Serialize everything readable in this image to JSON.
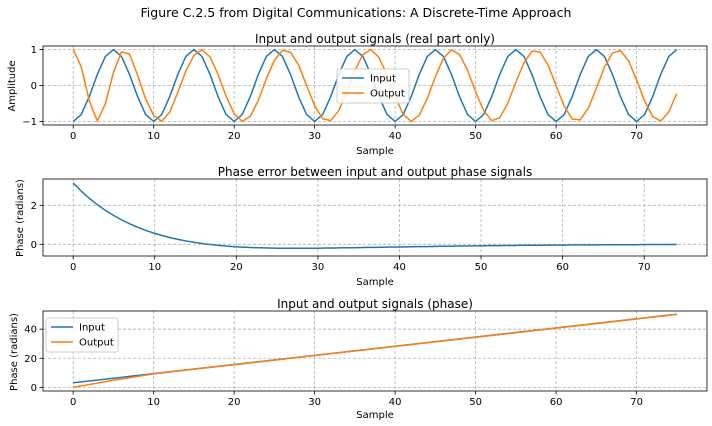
{
  "figure": {
    "suptitle": "Figure C.2.5 from Digital Communications: A Discrete-Time Approach"
  },
  "colors": {
    "input": "#1f77b4",
    "output": "#ff7f0e",
    "grid": "#b0b0b0",
    "axis": "#000000"
  },
  "chart_data": [
    {
      "type": "line",
      "title": "Input and output signals (real part only)",
      "xlabel": "Sample",
      "ylabel": "Amplitude",
      "xlim": [
        -3.75,
        78.75
      ],
      "ylim": [
        -1.1,
        1.1
      ],
      "xticks": [
        0,
        10,
        20,
        30,
        40,
        50,
        60,
        70
      ],
      "yticks": [
        -1,
        0,
        1
      ],
      "grid": true,
      "legend": "center",
      "series": [
        {
          "name": "Input",
          "color": "#1f77b4",
          "x": [
            0,
            1,
            2,
            3,
            4,
            5,
            6,
            7,
            8,
            9,
            10,
            11,
            12,
            13,
            14,
            15,
            16,
            17,
            18,
            19,
            20,
            21,
            22,
            23,
            24,
            25,
            26,
            27,
            28,
            29,
            30,
            31,
            32,
            33,
            34,
            35,
            36,
            37,
            38,
            39,
            40,
            41,
            42,
            43,
            44,
            45,
            46,
            47,
            48,
            49,
            50,
            51,
            52,
            53,
            54,
            55,
            56,
            57,
            58,
            59,
            60,
            61,
            62,
            63,
            64,
            65,
            66,
            67,
            68,
            69,
            70,
            71,
            72,
            73,
            74,
            75
          ],
          "y": [
            -1.0,
            -0.809,
            -0.309,
            0.309,
            0.809,
            1.0,
            0.809,
            0.309,
            -0.309,
            -0.809,
            -1.0,
            -0.809,
            -0.309,
            0.309,
            0.809,
            1.0,
            0.809,
            0.309,
            -0.309,
            -0.809,
            -1.0,
            -0.809,
            -0.309,
            0.309,
            0.809,
            1.0,
            0.809,
            0.309,
            -0.309,
            -0.809,
            -1.0,
            -0.809,
            -0.309,
            0.309,
            0.809,
            1.0,
            0.809,
            0.309,
            -0.309,
            -0.809,
            -1.0,
            -0.809,
            -0.309,
            0.309,
            0.809,
            1.0,
            0.809,
            0.309,
            -0.309,
            -0.809,
            -1.0,
            -0.809,
            -0.309,
            0.309,
            0.809,
            1.0,
            0.809,
            0.309,
            -0.309,
            -0.809,
            -1.0,
            -0.809,
            -0.309,
            0.309,
            0.809,
            1.0,
            0.809,
            0.309,
            -0.309,
            -0.809,
            -1.0,
            -0.809,
            -0.309,
            0.309,
            0.809,
            1.0
          ]
        },
        {
          "name": "Output",
          "color": "#ff7f0e",
          "x": [
            0,
            1,
            2,
            3,
            4,
            5,
            6,
            7,
            8,
            9,
            10,
            11,
            12,
            13,
            14,
            15,
            16,
            17,
            18,
            19,
            20,
            21,
            22,
            23,
            24,
            25,
            26,
            27,
            28,
            29,
            30,
            31,
            32,
            33,
            34,
            35,
            36,
            37,
            38,
            39,
            40,
            41,
            42,
            43,
            44,
            45,
            46,
            47,
            48,
            49,
            50,
            51,
            52,
            53,
            54,
            55,
            56,
            57,
            58,
            59,
            60,
            61,
            62,
            63,
            64,
            65,
            66,
            67,
            68,
            69,
            70,
            71,
            72,
            73,
            74,
            75
          ],
          "y": [
            1.0,
            0.524,
            -0.427,
            -0.99,
            -0.505,
            0.36,
            0.935,
            0.878,
            0.289,
            -0.373,
            -0.834,
            -0.996,
            -0.741,
            -0.195,
            0.403,
            0.841,
            0.993,
            0.798,
            0.307,
            -0.297,
            -0.786,
            -0.998,
            -0.858,
            -0.417,
            0.189,
            0.697,
            0.978,
            0.929,
            0.573,
            0.003,
            -0.562,
            -0.925,
            -0.979,
            -0.697,
            -0.165,
            0.417,
            0.865,
            0.999,
            0.782,
            0.297,
            -0.306,
            -0.806,
            -0.999,
            -0.826,
            -0.359,
            0.246,
            0.758,
            0.992,
            0.863,
            0.425,
            -0.175,
            -0.7,
            -0.978,
            -0.9,
            -0.495,
            0.09,
            0.633,
            0.956,
            0.934,
            0.573,
            0.0,
            -0.572,
            -0.932,
            -0.957,
            -0.636,
            -0.079,
            0.505,
            0.903,
            0.974,
            0.688,
            0.154,
            -0.43,
            -0.864,
            -0.987,
            -0.737,
            -0.225
          ]
        }
      ]
    },
    {
      "type": "line",
      "title": "Phase error between input and output phase signals",
      "xlabel": "Sample",
      "ylabel": "Phase (radians)",
      "xlim": [
        -3.7,
        77.7
      ],
      "ylim": [
        -0.6,
        3.35
      ],
      "xticks": [
        0,
        10,
        20,
        30,
        40,
        50,
        60,
        70
      ],
      "yticks": [
        0,
        2
      ],
      "grid": true,
      "series": [
        {
          "color": "#1f77b4",
          "x": [
            0,
            1,
            2,
            3,
            4,
            5,
            6,
            7,
            8,
            9,
            10,
            11,
            12,
            13,
            14,
            15,
            16,
            17,
            18,
            19,
            20,
            21,
            22,
            23,
            24,
            25,
            26,
            27,
            28,
            29,
            30,
            31,
            32,
            33,
            34,
            35,
            36,
            37,
            38,
            39,
            40,
            41,
            42,
            43,
            44,
            45,
            46,
            47,
            48,
            49,
            50,
            51,
            52,
            53,
            54,
            55,
            56,
            57,
            58,
            59,
            60,
            61,
            62,
            63,
            64,
            65,
            66,
            67,
            68,
            69,
            70,
            71,
            72,
            73,
            74
          ],
          "y": [
            3.14,
            2.72,
            2.35,
            2.02,
            1.73,
            1.47,
            1.24,
            1.04,
            0.86,
            0.7,
            0.56,
            0.44,
            0.33,
            0.24,
            0.16,
            0.09,
            0.03,
            -0.02,
            -0.06,
            -0.1,
            -0.13,
            -0.15,
            -0.17,
            -0.18,
            -0.19,
            -0.2,
            -0.2,
            -0.2,
            -0.2,
            -0.2,
            -0.2,
            -0.19,
            -0.19,
            -0.18,
            -0.18,
            -0.17,
            -0.16,
            -0.16,
            -0.15,
            -0.14,
            -0.14,
            -0.13,
            -0.12,
            -0.12,
            -0.11,
            -0.1,
            -0.1,
            -0.09,
            -0.09,
            -0.08,
            -0.08,
            -0.07,
            -0.07,
            -0.06,
            -0.06,
            -0.05,
            -0.05,
            -0.05,
            -0.04,
            -0.04,
            -0.04,
            -0.03,
            -0.03,
            -0.03,
            -0.03,
            -0.02,
            -0.02,
            -0.02,
            -0.02,
            -0.02,
            -0.01,
            -0.01,
            -0.01,
            -0.01,
            -0.01
          ]
        }
      ]
    },
    {
      "type": "line",
      "title": "Input and output signals (phase)",
      "xlabel": "Sample",
      "ylabel": "Phase (radians)",
      "xlim": [
        -3.75,
        78.75
      ],
      "ylim": [
        -2.5,
        52.5
      ],
      "xticks": [
        0,
        10,
        20,
        30,
        40,
        50,
        60,
        70
      ],
      "yticks": [
        0,
        20,
        40
      ],
      "grid": true,
      "legend": "upper left",
      "series": [
        {
          "name": "Input",
          "color": "#1f77b4",
          "x": [
            0,
            75
          ],
          "y": [
            3.14,
            50.26
          ]
        },
        {
          "name": "Output",
          "color": "#ff7f0e",
          "x": [
            0,
            5,
            10,
            15,
            20,
            30,
            40,
            50,
            60,
            75
          ],
          "y": [
            0.0,
            4.86,
            9.24,
            12.52,
            15.57,
            21.87,
            28.16,
            34.44,
            40.72,
            50.14
          ]
        }
      ]
    }
  ]
}
